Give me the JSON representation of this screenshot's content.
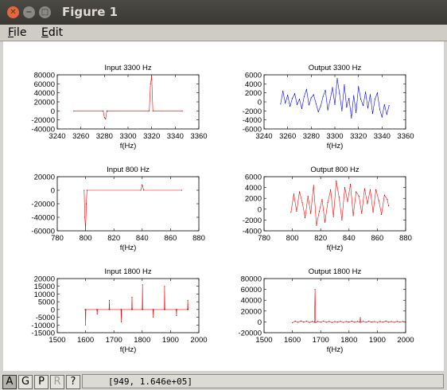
{
  "window": {
    "title": "Figure 1"
  },
  "menu": {
    "file": "File",
    "edit": "Edit"
  },
  "toolbar": {
    "a": "A",
    "g": "G",
    "p": "P",
    "r": "R",
    "help": "?"
  },
  "status": {
    "coords": "[949, 1.646e+05]"
  },
  "colors": {
    "input": "#ff0000",
    "output_3300": "#0000ff",
    "output_other": "#ff0000"
  },
  "chart_data": [
    {
      "type": "line",
      "title": "Input 3300 Hz",
      "xlabel": "f(Hz)",
      "xlim": [
        3240,
        3360
      ],
      "ylim": [
        -40000,
        80000
      ],
      "xticks": [
        3240,
        3260,
        3280,
        3300,
        3320,
        3340,
        3360
      ],
      "yticks": [
        -40000,
        -20000,
        0,
        20000,
        40000,
        60000,
        80000
      ],
      "color": "#ff0000",
      "series": [
        {
          "x": [
            3254,
            3279,
            3280,
            3281,
            3282,
            3318,
            3319,
            3320,
            3321,
            3346
          ],
          "y": [
            0,
            0,
            -15000,
            -18000,
            0,
            0,
            60000,
            76000,
            0,
            0
          ]
        }
      ]
    },
    {
      "type": "line",
      "title": "Output 3300 Hz",
      "xlabel": "f(Hz)",
      "xlim": [
        3240,
        3360
      ],
      "ylim": [
        -6000,
        6000
      ],
      "xticks": [
        3240,
        3260,
        3280,
        3300,
        3320,
        3340,
        3360
      ],
      "yticks": [
        -6000,
        -4000,
        -2000,
        0,
        2000,
        4000,
        6000
      ],
      "color": "#0000ff",
      "series": [
        {
          "x": [
            3254,
            3256,
            3258,
            3260,
            3262,
            3264,
            3266,
            3268,
            3270,
            3272,
            3274,
            3276,
            3278,
            3280,
            3282,
            3284,
            3286,
            3288,
            3290,
            3292,
            3294,
            3296,
            3298,
            3300,
            3302,
            3304,
            3306,
            3308,
            3310,
            3312,
            3314,
            3316,
            3318,
            3320,
            3322,
            3324,
            3326,
            3328,
            3330,
            3332,
            3334,
            3336,
            3338,
            3340,
            3342,
            3344,
            3346
          ],
          "y": [
            -500,
            2400,
            -300,
            1500,
            -1000,
            800,
            1800,
            -600,
            600,
            -1500,
            1200,
            2800,
            -700,
            900,
            1600,
            -400,
            -2200,
            -900,
            1200,
            2600,
            -1800,
            500,
            3200,
            -600,
            5200,
            1800,
            -2000,
            3800,
            -1200,
            800,
            -3600,
            1400,
            -2400,
            3400,
            600,
            -800,
            2200,
            -1400,
            1600,
            -2600,
            600,
            2000,
            -1600,
            -3400,
            -600,
            -2800,
            -800
          ]
        }
      ]
    },
    {
      "type": "line",
      "title": "Input 800 Hz",
      "xlabel": "f(Hz)",
      "xlim": [
        780,
        880
      ],
      "ylim": [
        -60000,
        20000
      ],
      "xticks": [
        780,
        800,
        820,
        840,
        860,
        880
      ],
      "yticks": [
        -60000,
        -40000,
        -20000,
        0,
        20000
      ],
      "color": "#ff0000",
      "series": [
        {
          "x": [
            799,
            799.5,
            800,
            800.5,
            801,
            839,
            840,
            841,
            868
          ],
          "y": [
            0,
            -40000,
            -60000,
            -20000,
            0,
            0,
            8000,
            0,
            0
          ]
        }
      ]
    },
    {
      "type": "line",
      "title": "Output 800 Hz",
      "xlabel": "f(Hz)",
      "xlim": [
        780,
        880
      ],
      "ylim": [
        -4000,
        6000
      ],
      "xticks": [
        780,
        800,
        820,
        840,
        860,
        880
      ],
      "yticks": [
        -4000,
        -2000,
        0,
        2000,
        4000,
        6000
      ],
      "color": "#ff0000",
      "series": [
        {
          "x": [
            799,
            801,
            803,
            805,
            807,
            809,
            811,
            813,
            815,
            817,
            819,
            821,
            823,
            825,
            827,
            829,
            831,
            833,
            835,
            837,
            839,
            841,
            843,
            845,
            847,
            849,
            851,
            853,
            855,
            857,
            859,
            861,
            863,
            865,
            867,
            868
          ],
          "y": [
            -600,
            2800,
            -400,
            3200,
            1200,
            -1600,
            2400,
            -800,
            4400,
            -3000,
            -400,
            1800,
            -2400,
            1200,
            3600,
            -1400,
            5200,
            2200,
            -2000,
            4000,
            1400,
            4600,
            -1200,
            3200,
            2400,
            -800,
            3800,
            1000,
            3600,
            -600,
            3600,
            1600,
            -1000,
            2600,
            1800,
            600
          ]
        }
      ]
    },
    {
      "type": "line",
      "title": "Input 1800 Hz",
      "xlabel": "f(Hz)",
      "xlim": [
        1500,
        2000
      ],
      "ylim": [
        -15000,
        20000
      ],
      "xticks": [
        1500,
        1600,
        1700,
        1800,
        1900,
        2000
      ],
      "yticks": [
        -15000,
        -10000,
        -5000,
        0,
        5000,
        10000,
        15000,
        20000
      ],
      "color": "#ff0000",
      "series": [
        {
          "x": [
            1598,
            1599,
            1600,
            1601,
            1640,
            1641,
            1642,
            1683,
            1684,
            1685,
            1725,
            1726,
            1727,
            1763,
            1764,
            1765,
            1800,
            1801,
            1802,
            1838,
            1839,
            1840,
            1878,
            1879,
            1880,
            1920,
            1921,
            1922,
            1960,
            1961,
            1962,
            1963
          ],
          "y": [
            0,
            0,
            -10000,
            0,
            0,
            -3000,
            0,
            0,
            6000,
            0,
            0,
            -8000,
            0,
            0,
            8000,
            0,
            0,
            16000,
            0,
            0,
            -5000,
            0,
            0,
            15000,
            0,
            0,
            -4000,
            0,
            0,
            6000,
            0,
            0
          ]
        }
      ]
    },
    {
      "type": "line",
      "title": "Output 1800 Hz",
      "xlabel": "f(Hz)",
      "xlim": [
        1500,
        2000
      ],
      "ylim": [
        -20000,
        80000
      ],
      "xticks": [
        1500,
        1600,
        1700,
        1800,
        1900,
        2000
      ],
      "yticks": [
        -20000,
        0,
        20000,
        40000,
        60000,
        80000
      ],
      "color": "#ff0000",
      "series": [
        {
          "x": [
            1600,
            1610,
            1620,
            1630,
            1640,
            1650,
            1660,
            1670,
            1678,
            1680,
            1682,
            1690,
            1700,
            1710,
            1720,
            1730,
            1740,
            1750,
            1760,
            1770,
            1780,
            1790,
            1800,
            1810,
            1820,
            1830,
            1838,
            1840,
            1842,
            1850,
            1860,
            1870,
            1880,
            1890,
            1900,
            1910,
            1920,
            1930,
            1940,
            1950,
            1960,
            1970,
            1980,
            1990,
            2000
          ],
          "y": [
            -1500,
            1200,
            -900,
            1800,
            -600,
            1500,
            -1200,
            900,
            -800,
            60000,
            -1500,
            1100,
            -700,
            1400,
            -900,
            1000,
            -1300,
            800,
            -600,
            1200,
            -1000,
            700,
            -500,
            1300,
            -800,
            900,
            -600,
            8000,
            -700,
            1000,
            -900,
            1200,
            -500,
            800,
            -1100,
            900,
            -600,
            1300,
            -800,
            700,
            -900,
            1100,
            -500,
            900,
            -600
          ]
        }
      ]
    }
  ]
}
